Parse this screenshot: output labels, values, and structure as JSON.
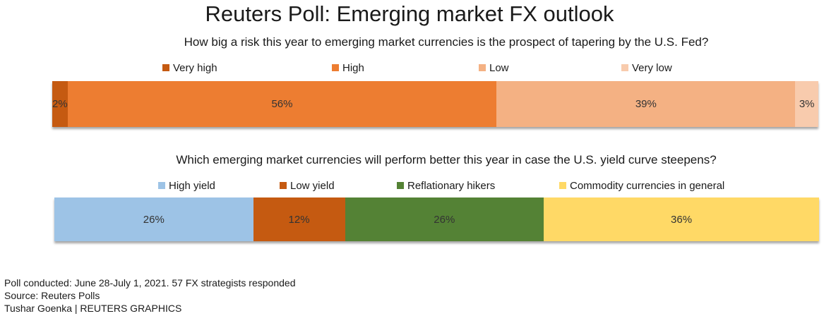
{
  "title": "Reuters Poll: Emerging market FX outlook",
  "chart_data": [
    {
      "type": "bar",
      "stacked": true,
      "orientation": "horizontal",
      "title": "How big a risk this year to emerging market currencies is the prospect of tapering by the U.S. Fed?",
      "series": [
        {
          "name": "Very high",
          "value": 2,
          "label": "2%",
          "color": "#c55a11"
        },
        {
          "name": "High",
          "value": 56,
          "label": "56%",
          "color": "#ed7d31"
        },
        {
          "name": "Low",
          "value": 39,
          "label": "39%",
          "color": "#f4b183"
        },
        {
          "name": "Very low",
          "value": 3,
          "label": "3%",
          "color": "#f8cbad"
        }
      ],
      "xlim": [
        0,
        100
      ]
    },
    {
      "type": "bar",
      "stacked": true,
      "orientation": "horizontal",
      "title": "Which emerging market currencies will perform better this year in case the U.S. yield curve steepens?",
      "series": [
        {
          "name": "High yield",
          "value": 26,
          "label": "26%",
          "color": "#9dc3e6"
        },
        {
          "name": "Low yield",
          "value": 12,
          "label": "12%",
          "color": "#c55a11"
        },
        {
          "name": "Reflationary hikers",
          "value": 26,
          "label": "26%",
          "color": "#548235"
        },
        {
          "name": "Commodity currencies in general",
          "value": 36,
          "label": "36%",
          "color": "#ffd966"
        }
      ],
      "xlim": [
        0,
        100
      ]
    }
  ],
  "footer": {
    "line1": "Poll conducted: June  28-July 1, 2021. 57 FX strategists responded",
    "line2": "Source: Reuters Polls",
    "line3": "Tushar Goenka | REUTERS GRAPHICS"
  }
}
